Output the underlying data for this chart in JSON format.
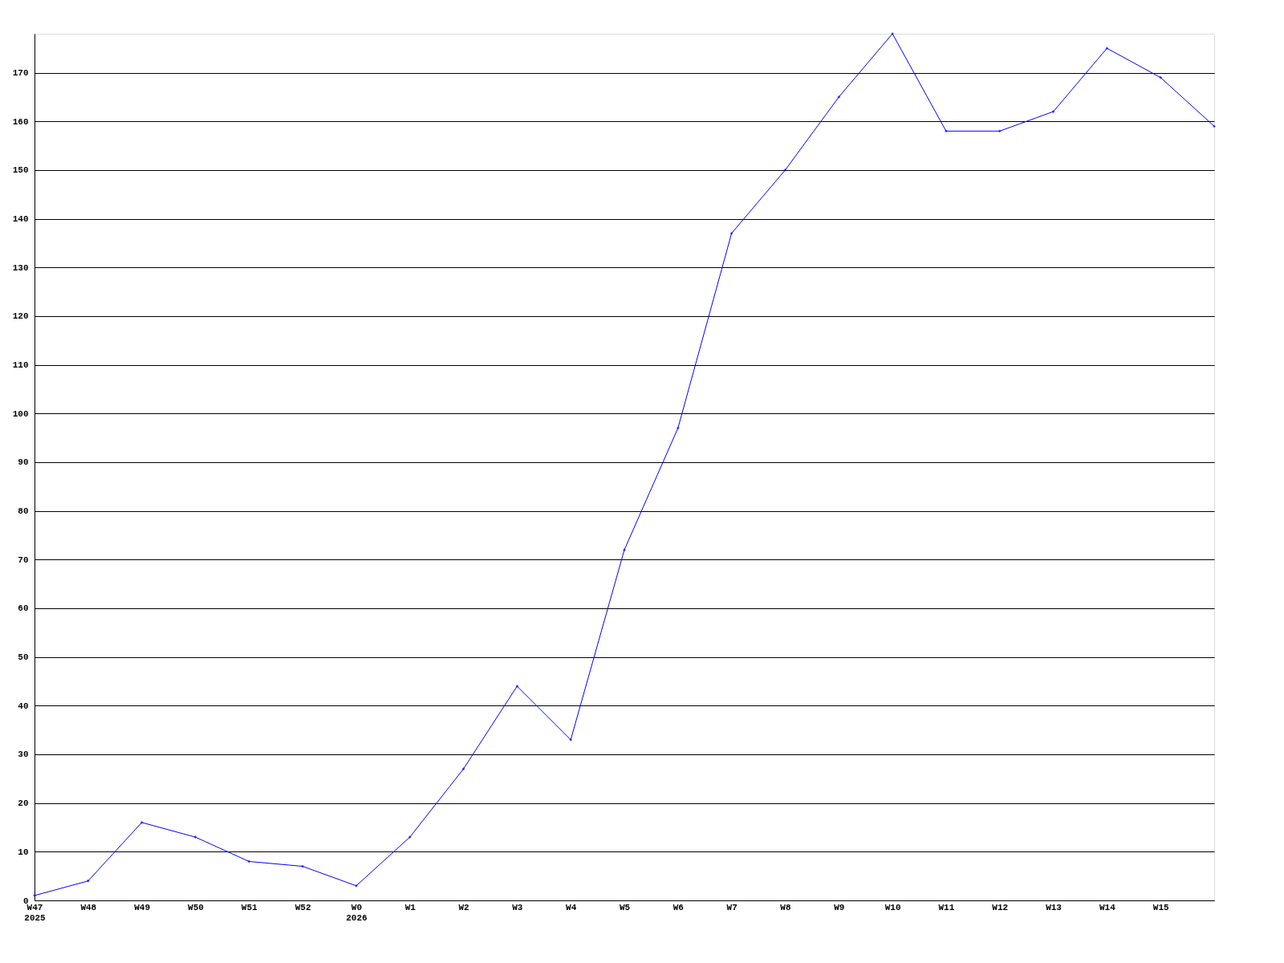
{
  "chart_data": {
    "type": "line",
    "categories": [
      "W47\n2025",
      "W48",
      "W49",
      "W50",
      "W51",
      "W52",
      "W0\n2026",
      "W1",
      "W2",
      "W3",
      "W4",
      "W5",
      "W6",
      "W7",
      "W8",
      "W9",
      "W10",
      "W11",
      "W12",
      "W13",
      "W14",
      "W15",
      null
    ],
    "series": [
      {
        "color": "#0000ff",
        "values": [
          1,
          4,
          16,
          13,
          8,
          7,
          3,
          13,
          27,
          44,
          33,
          72,
          97,
          137,
          150,
          165,
          178,
          158,
          158,
          162,
          175,
          169,
          159
        ]
      }
    ],
    "ylim": [
      0,
      178
    ],
    "yticks": [
      0,
      10,
      20,
      30,
      40,
      50,
      60,
      70,
      80,
      90,
      100,
      110,
      120,
      130,
      140,
      150,
      160,
      170
    ],
    "grid": "y",
    "marker": "diamond",
    "line_style": "solid"
  }
}
